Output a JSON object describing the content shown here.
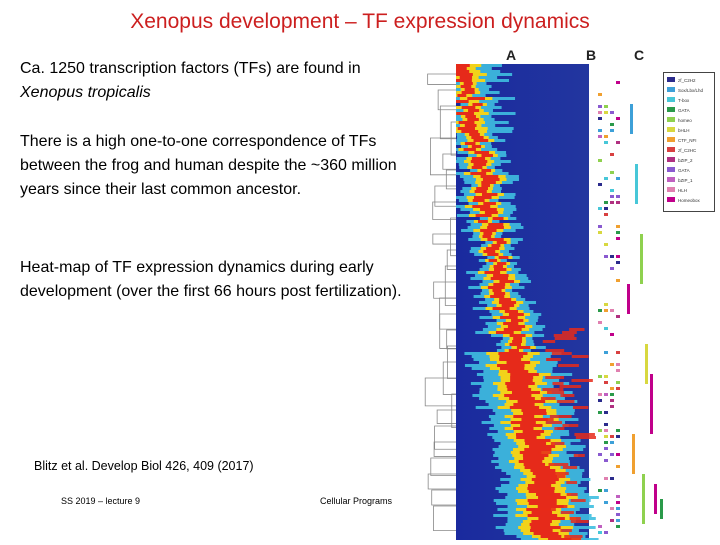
{
  "slide": {
    "title": "Xenopus development – TF expression dynamics",
    "para1_line1": "Ca. 1250 transcription factors (TFs) are found in",
    "para1_line2": "Xenopus tropicalis",
    "para2": "There is a high one-to-one correspondence of TFs between the frog and human despite the ~360 million years since their last common ancestor.",
    "para3": "Heat-map of TF expression dynamics during early development (over the first 66 hours post fertilization).",
    "citation": "Blitz et al. Develop Biol 426, 409 (2017)",
    "footer_left": "SS 2019 – lecture 9",
    "footer_center": "Cellular Programs"
  },
  "figure": {
    "panel_labels": [
      "A",
      "B",
      "C"
    ],
    "colors": {
      "low": "#1a2a9e",
      "mid": "#3fbfe0",
      "high": "#e62a1a",
      "peak": "#f2d21a"
    },
    "legend_entries": [
      {
        "label": "zf_C2H2",
        "color": "#2b2b8c"
      },
      {
        "label": "Sox/Lbx/Lhd",
        "color": "#3da0d8"
      },
      {
        "label": "T-box",
        "color": "#47c7d8"
      },
      {
        "label": "GATA",
        "color": "#2a9a4a"
      },
      {
        "label": "homeo",
        "color": "#8fd14f"
      },
      {
        "label": "bHLH",
        "color": "#d8d840"
      },
      {
        "label": "CTF_NFI",
        "color": "#f0a030"
      },
      {
        "label": "zf_C2HC",
        "color": "#d84040"
      },
      {
        "label": "bZIP_2",
        "color": "#b03080"
      },
      {
        "label": "GATA",
        "color": "#8a5ad0"
      },
      {
        "label": "bZIP_1",
        "color": "#c060c0"
      },
      {
        "label": "HLH",
        "color": "#e080b0"
      },
      {
        "label": "Homeobox",
        "color": "#c0008a"
      }
    ]
  }
}
